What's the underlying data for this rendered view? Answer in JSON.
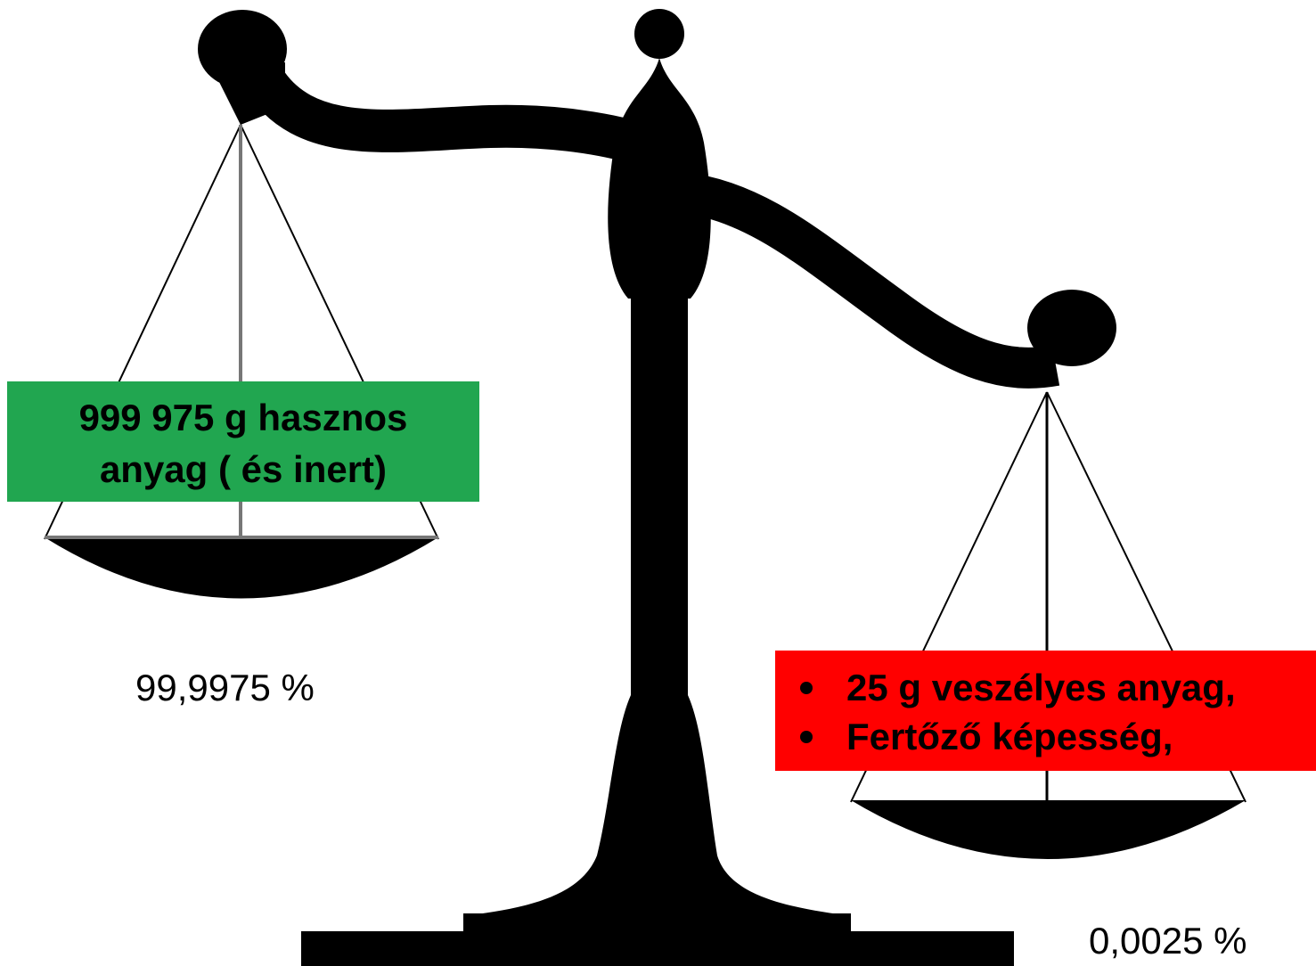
{
  "left": {
    "label_lines": [
      "999 975 g hasznos",
      "anyag ( és inert)"
    ],
    "percent": "99,9975 %"
  },
  "right": {
    "items": [
      "25 g veszélyes anyag,",
      "Fertőző képesség,"
    ],
    "percent": "0,0025 %"
  }
}
